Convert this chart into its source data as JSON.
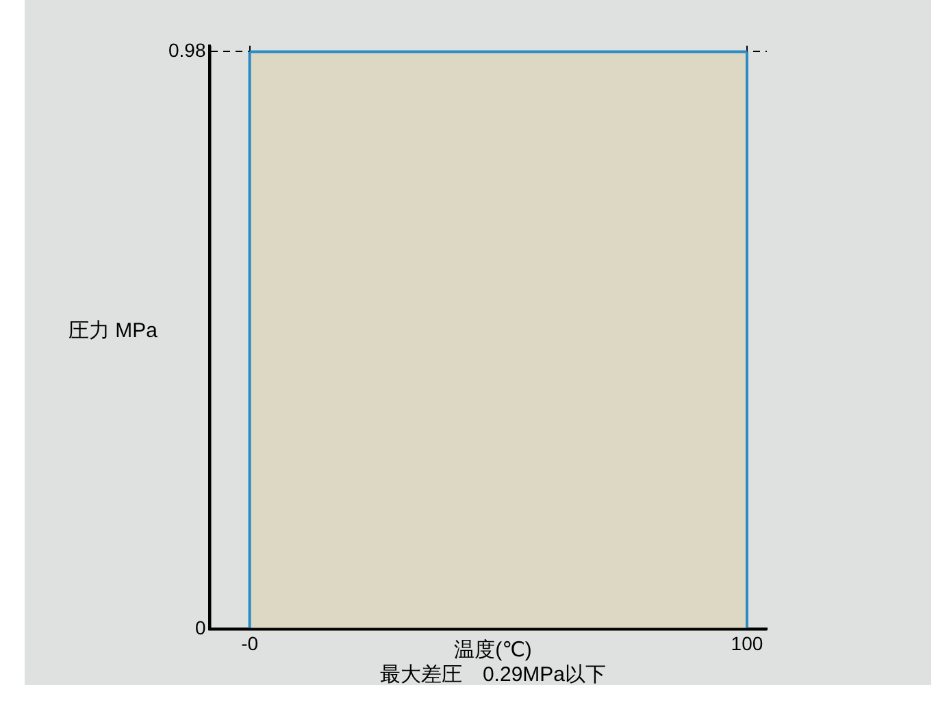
{
  "chart_data": {
    "type": "area",
    "xlabel": "温度(℃)",
    "ylabel": "圧力 MPa",
    "annotations": [
      "最大差圧　0.29MPa以下"
    ],
    "series": [
      {
        "color": "#ddd8c4",
        "x": [
          0,
          100
        ],
        "values": [
          0.98,
          0.98
        ]
      }
    ],
    "xlim": [
      -8,
      104
    ],
    "xticks": [
      {
        "value": 0,
        "label": "-0"
      },
      100
    ],
    "ylim": [
      0,
      0.99
    ],
    "yticks": [
      0,
      0.98
    ],
    "grid": true
  }
}
